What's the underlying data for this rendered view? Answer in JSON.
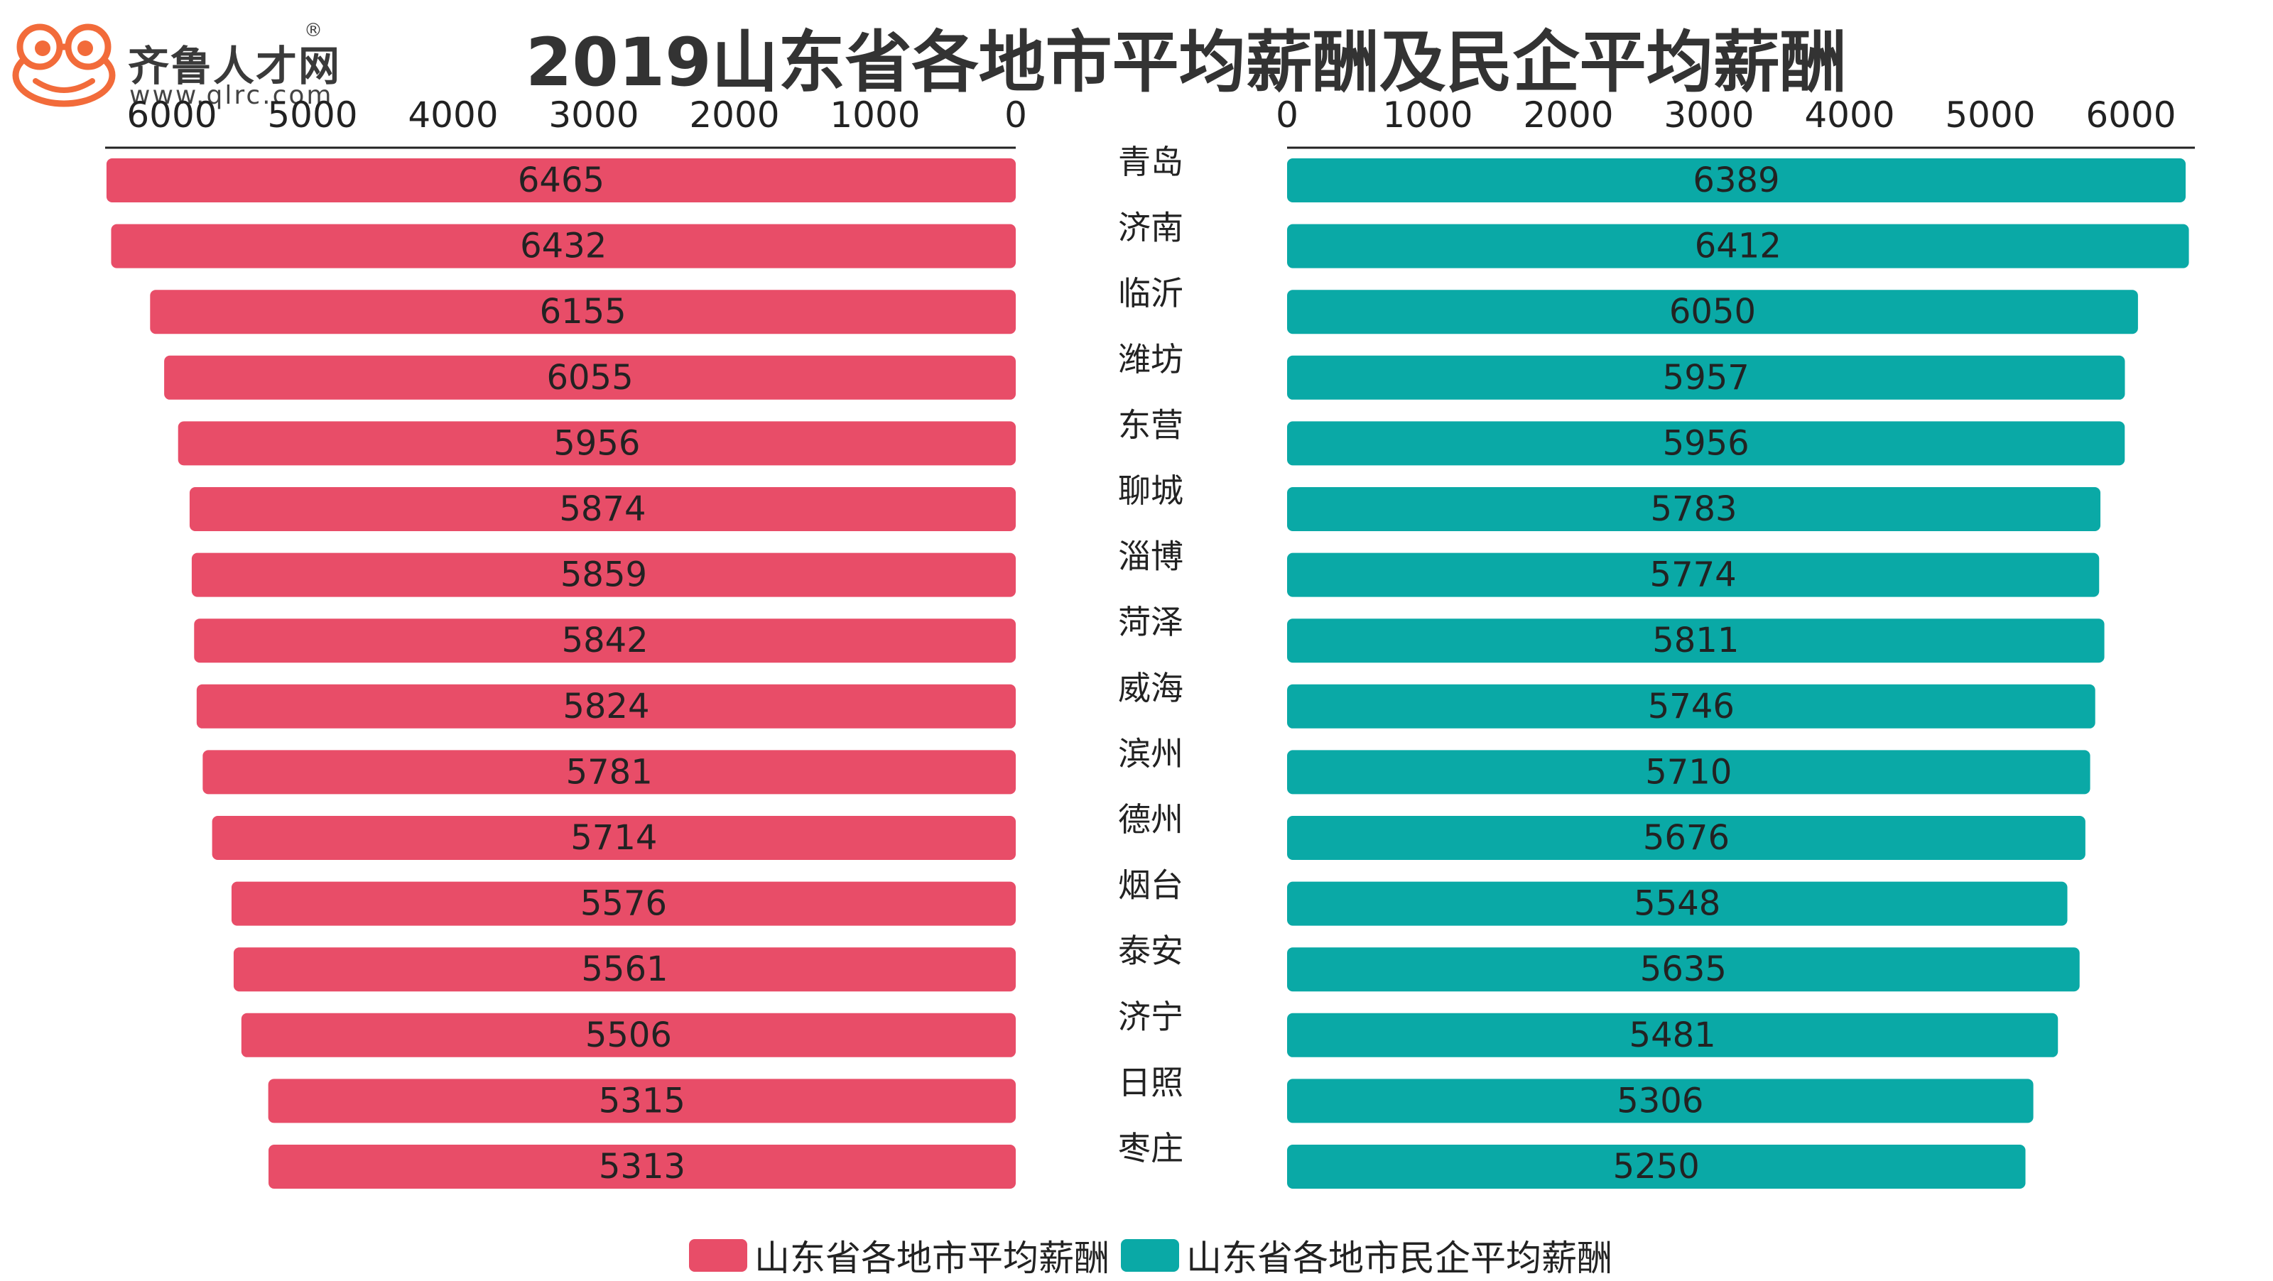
{
  "logo": {
    "brand": "齐鲁人才",
    "brand_suffix": "网",
    "registered": "®",
    "url": "www.qlrc.com"
  },
  "colors": {
    "left_bar": "#e84d68",
    "right_bar": "#0aa9a6",
    "logo_orange": "#f26b3a"
  },
  "chart_data": {
    "type": "bar",
    "orientation": "horizontal-butterfly",
    "title": "2019山东省各地市平均薪酬及民企平均薪酬",
    "categories": [
      "青岛",
      "济南",
      "临沂",
      "潍坊",
      "东营",
      "聊城",
      "淄博",
      "菏泽",
      "威海",
      "滨州",
      "德州",
      "烟台",
      "泰安",
      "济宁",
      "日照",
      "枣庄"
    ],
    "series": [
      {
        "name": "山东省各地市平均薪酬",
        "side": "left",
        "values": [
          6465,
          6432,
          6155,
          6055,
          5956,
          5874,
          5859,
          5842,
          5824,
          5781,
          5714,
          5576,
          5561,
          5506,
          5315,
          5313
        ]
      },
      {
        "name": "山东省各地市民企平均薪酬",
        "side": "right",
        "values": [
          6389,
          6412,
          6050,
          5957,
          5956,
          5783,
          5774,
          5811,
          5746,
          5710,
          5676,
          5548,
          5635,
          5481,
          5306,
          5250
        ]
      }
    ],
    "left_axis": {
      "ticks": [
        6000,
        5000,
        4000,
        3000,
        2000,
        1000,
        0
      ],
      "range": [
        0,
        6500
      ],
      "reversed": true
    },
    "right_axis": {
      "ticks": [
        0,
        1000,
        2000,
        3000,
        4000,
        5000,
        6000
      ],
      "range": [
        0,
        6500
      ]
    },
    "legend_position": "bottom",
    "grid": false
  }
}
